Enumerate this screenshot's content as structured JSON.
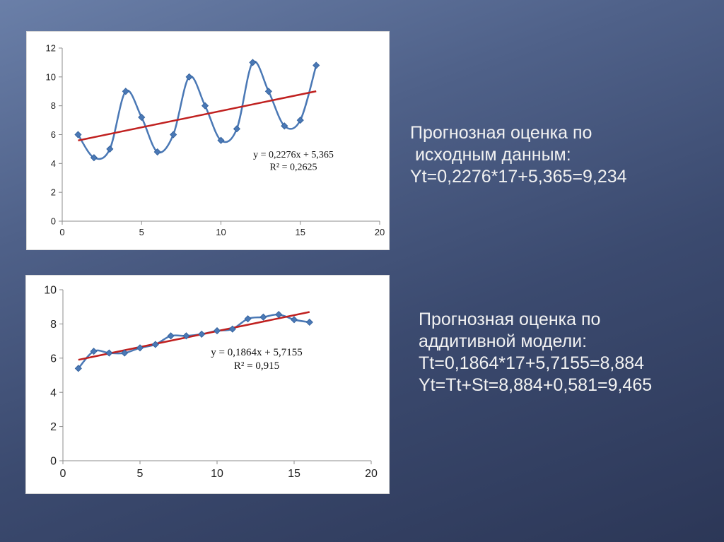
{
  "chart_data": [
    {
      "type": "scatter",
      "x": [
        1,
        2,
        3,
        4,
        5,
        6,
        7,
        8,
        9,
        10,
        11,
        12,
        13,
        14,
        15,
        16
      ],
      "y": [
        6,
        4.4,
        5,
        9,
        7.2,
        4.8,
        6,
        10,
        8,
        5.6,
        6.4,
        11,
        9,
        6.6,
        7,
        10.8
      ],
      "xlim": [
        0,
        20
      ],
      "ylim": [
        0,
        12
      ],
      "xticks": [
        0,
        5,
        10,
        15,
        20
      ],
      "yticks": [
        0,
        2,
        4,
        6,
        8,
        10,
        12
      ],
      "xtick_labels": [
        "0",
        "5",
        "10",
        "15",
        "20"
      ],
      "ytick_labels": [
        "0",
        "2",
        "4",
        "6",
        "8",
        "10",
        "12"
      ],
      "trendline": {
        "slope": 0.2276,
        "intercept": 5.365,
        "x_range": [
          1,
          16
        ]
      },
      "equation": "y = 0,2276x + 5,365",
      "r_squared": "R² = 0,2625",
      "series_color": "#4a78b5",
      "trend_color": "#c0201f",
      "grid": false
    },
    {
      "type": "scatter",
      "x": [
        1,
        2,
        3,
        4,
        5,
        6,
        7,
        8,
        9,
        10,
        11,
        12,
        13,
        14,
        15,
        16
      ],
      "y": [
        5.4,
        6.4,
        6.3,
        6.3,
        6.6,
        6.8,
        7.3,
        7.3,
        7.4,
        7.6,
        7.7,
        8.3,
        8.4,
        8.55,
        8.25,
        8.1
      ],
      "xlim": [
        0,
        20
      ],
      "ylim": [
        0,
        10
      ],
      "xticks": [
        0,
        5,
        10,
        15,
        20
      ],
      "yticks": [
        0,
        2,
        4,
        6,
        8,
        10
      ],
      "xtick_labels": [
        "0",
        "5",
        "10",
        "15",
        "20"
      ],
      "ytick_labels": [
        "0",
        "2",
        "4",
        "6",
        "8",
        "10"
      ],
      "trendline": {
        "slope": 0.1864,
        "intercept": 5.7155,
        "x_range": [
          1,
          16
        ]
      },
      "equation": "y = 0,1864x + 5,7155",
      "r_squared": "R² = 0,915",
      "series_color": "#4a78b5",
      "trend_color": "#c0201f",
      "grid": false
    }
  ],
  "text_blocks": {
    "first": {
      "line1": "Прогнозная оценка по",
      "line2": " исходным данным:",
      "line3": "Yt=0,2276*17+5,365=9,234"
    },
    "second": {
      "line1": "Прогнозная оценка по",
      "line2": "аддитивной модели:",
      "line3": "Tt=0,1864*17+5,7155=8,884",
      "line4": "Yt=Tt+St=8,884+0,581=9,465"
    }
  },
  "colors": {
    "text": "#f2f2f2",
    "highlight": "#f6e37a"
  }
}
